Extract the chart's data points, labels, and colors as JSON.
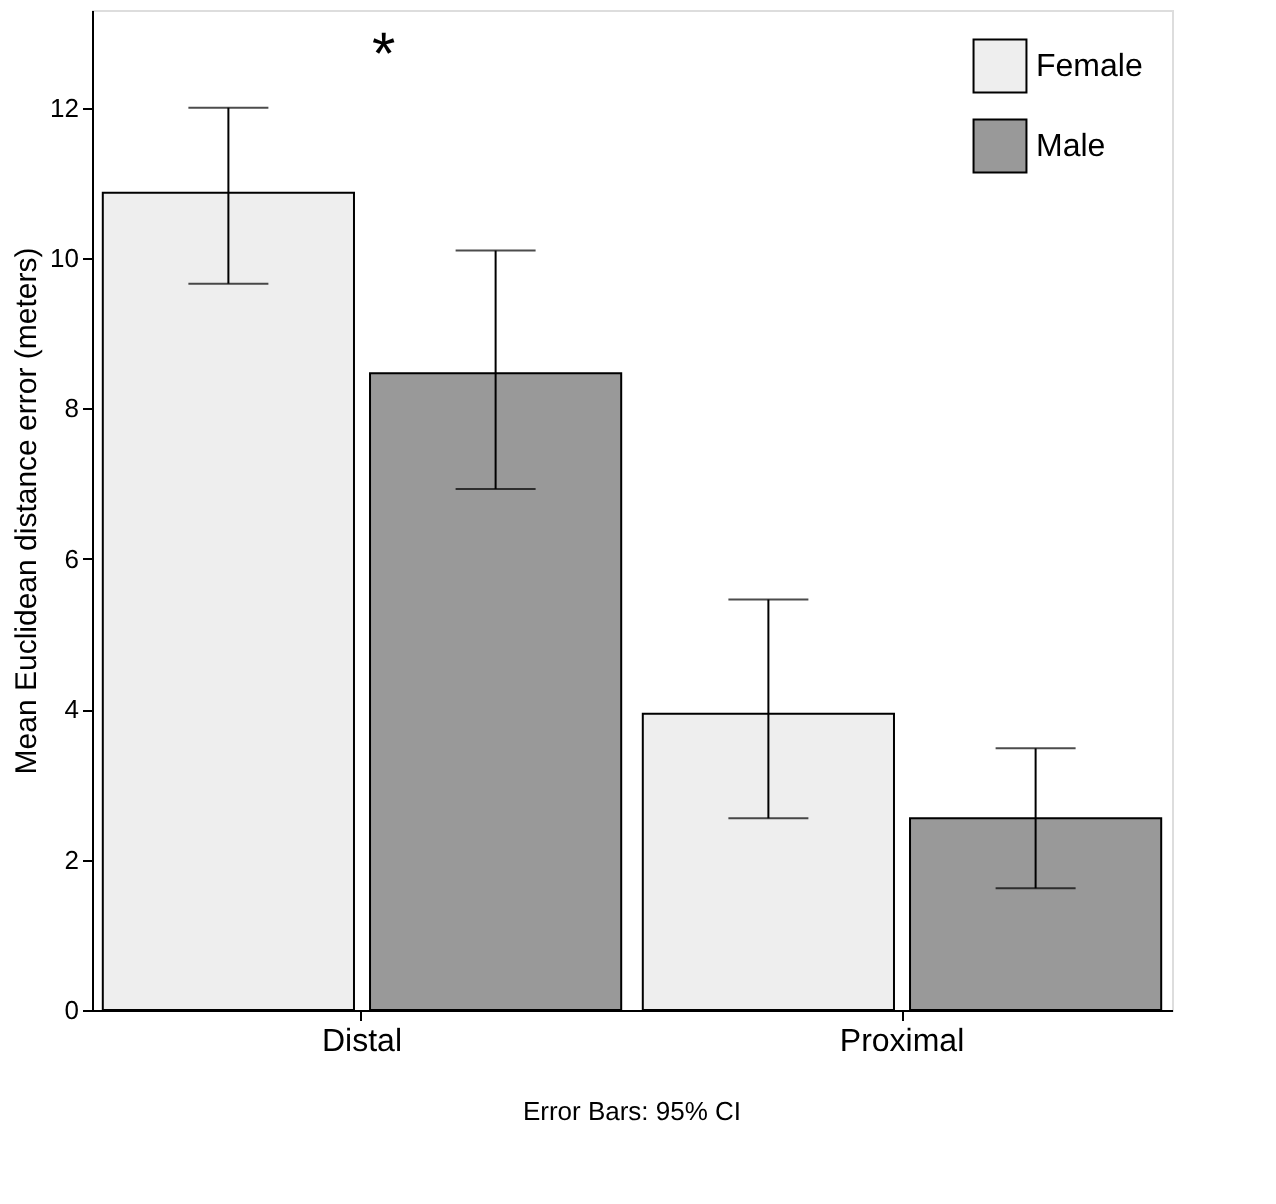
{
  "chart_data": {
    "type": "bar",
    "ylabel": "Mean Euclidean distance error (meters)",
    "categories": [
      "Distal",
      "Proximal"
    ],
    "series": [
      {
        "name": "Female",
        "color": "#eeeeee",
        "values": [
          10.87,
          3.94
        ],
        "errors": [
          [
            9.66,
            12.0
          ],
          [
            2.55,
            5.46
          ]
        ]
      },
      {
        "name": "Male",
        "color": "#999999",
        "values": [
          8.47,
          2.55
        ],
        "errors": [
          [
            6.93,
            10.1
          ],
          [
            1.62,
            3.48
          ]
        ]
      }
    ],
    "ylim": [
      0,
      13.3
    ],
    "yticks": [
      0,
      2,
      4,
      6,
      8,
      10,
      12
    ],
    "grid": false,
    "legend": "top right",
    "annotations": [
      "*",
      "Error Bars: 95% CI"
    ]
  }
}
